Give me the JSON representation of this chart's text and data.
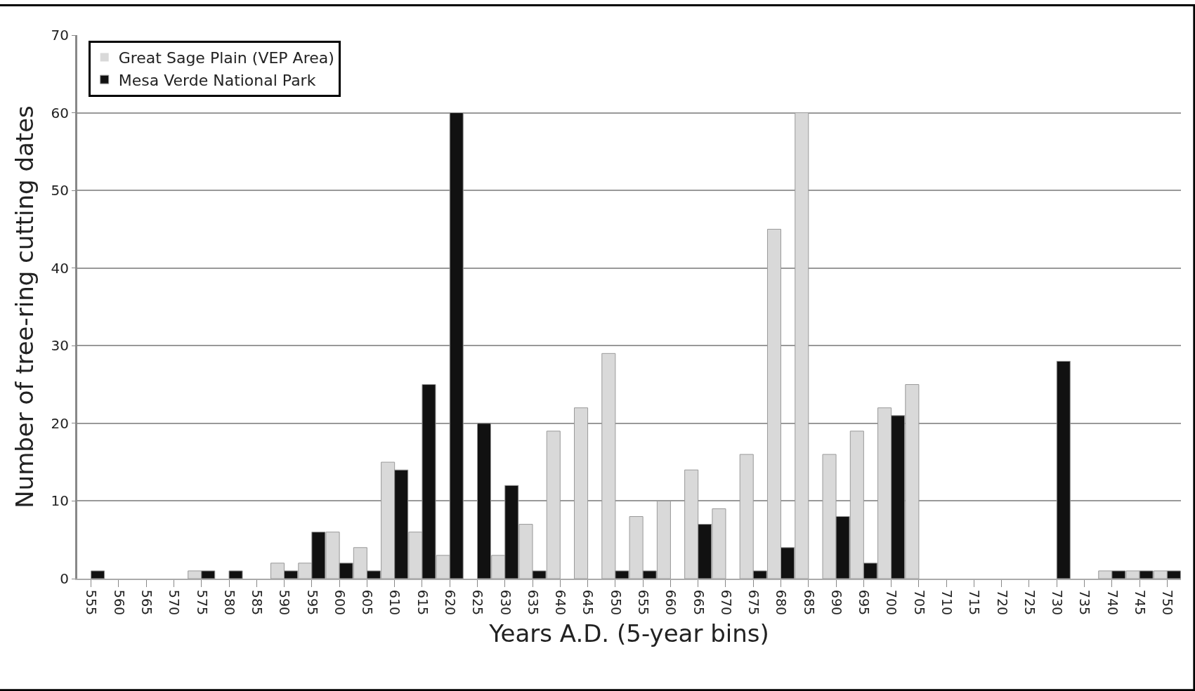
{
  "chart_data": {
    "type": "bar",
    "xlabel": "Years A.D. (5-year bins)",
    "ylabel": "Number of tree-ring cutting dates",
    "categories": [
      "555",
      "560",
      "565",
      "570",
      "575",
      "580",
      "585",
      "590",
      "595",
      "600",
      "605",
      "610",
      "615",
      "620",
      "625",
      "630",
      "635",
      "640",
      "645",
      "650",
      "655",
      "660",
      "665",
      "670",
      "675",
      "680",
      "685",
      "690",
      "695",
      "700",
      "705",
      "710",
      "715",
      "720",
      "725",
      "730",
      "735",
      "740",
      "745",
      "750"
    ],
    "series": [
      {
        "name": "Great Sage Plain (VEP Area)",
        "color": "#d9d9d9",
        "values": [
          0,
          0,
          0,
          0,
          1,
          0,
          0,
          2,
          2,
          6,
          4,
          15,
          6,
          3,
          0,
          3,
          7,
          19,
          22,
          29,
          8,
          10,
          14,
          9,
          16,
          45,
          60,
          16,
          19,
          22,
          25,
          0,
          0,
          0,
          0,
          0,
          0,
          1,
          1,
          1
        ]
      },
      {
        "name": "Mesa Verde National Park",
        "color": "#111111",
        "values": [
          1,
          0,
          0,
          0,
          1,
          1,
          0,
          1,
          6,
          2,
          1,
          14,
          25,
          60,
          20,
          12,
          1,
          0,
          0,
          1,
          1,
          0,
          7,
          0,
          1,
          4,
          0,
          8,
          2,
          21,
          0,
          0,
          0,
          0,
          0,
          28,
          0,
          1,
          1,
          1
        ]
      }
    ],
    "ylim": [
      0,
      70
    ],
    "yticks": [
      0,
      10,
      20,
      30,
      40,
      50,
      60,
      70
    ],
    "grid": "y",
    "legend": "top left"
  }
}
